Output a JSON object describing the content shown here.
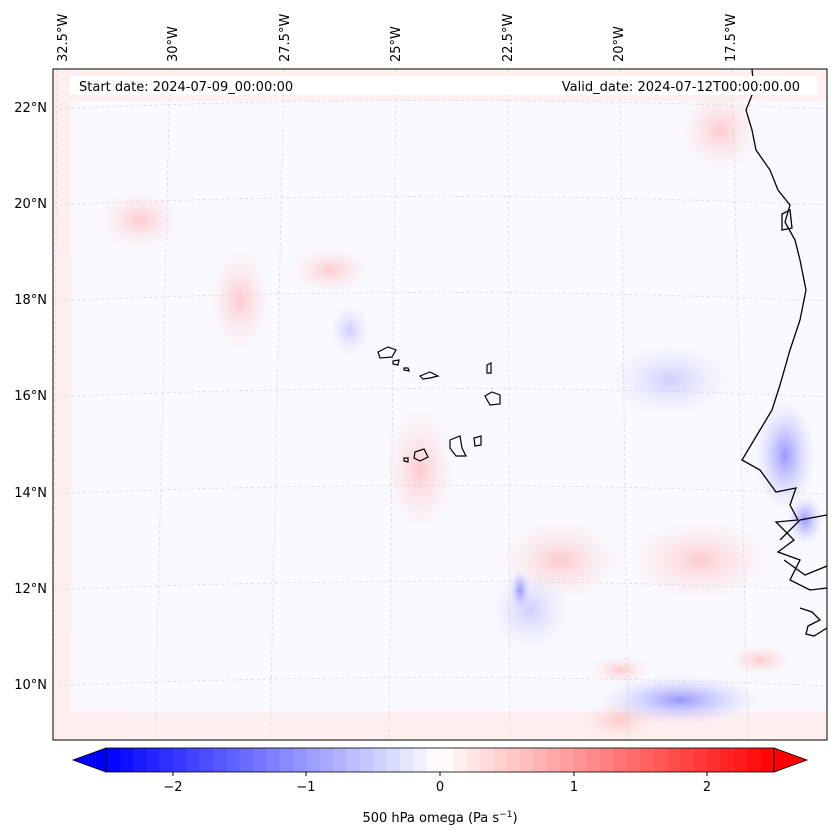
{
  "map": {
    "start_label": "Start date: 2024-07-09_00:00:00",
    "valid_label": "Valid_date: 2024-07-12T00:00:00.00",
    "lon_labels": [
      "32.5°W",
      "30°W",
      "27.5°W",
      "25°W",
      "22.5°W",
      "20°W",
      "17.5°W"
    ],
    "lat_labels": [
      "22°N",
      "20°N",
      "18°N",
      "16°N",
      "14°N",
      "12°N",
      "10°N"
    ],
    "gridlines": true,
    "coastline_color": "#000000"
  },
  "colorbar": {
    "label": "500 hPa omega (Pa s",
    "label_sup": "−1",
    "label_close": ")",
    "ticks": [
      "−2",
      "−1",
      "0",
      "1",
      "2"
    ],
    "tick_values": [
      -2,
      -1,
      0,
      1,
      2
    ],
    "range": [
      -2.6,
      2.6
    ],
    "colormap": "bwr",
    "low_color": "#0000ff",
    "mid_color": "#ffffff",
    "high_color": "#ff0000"
  }
}
